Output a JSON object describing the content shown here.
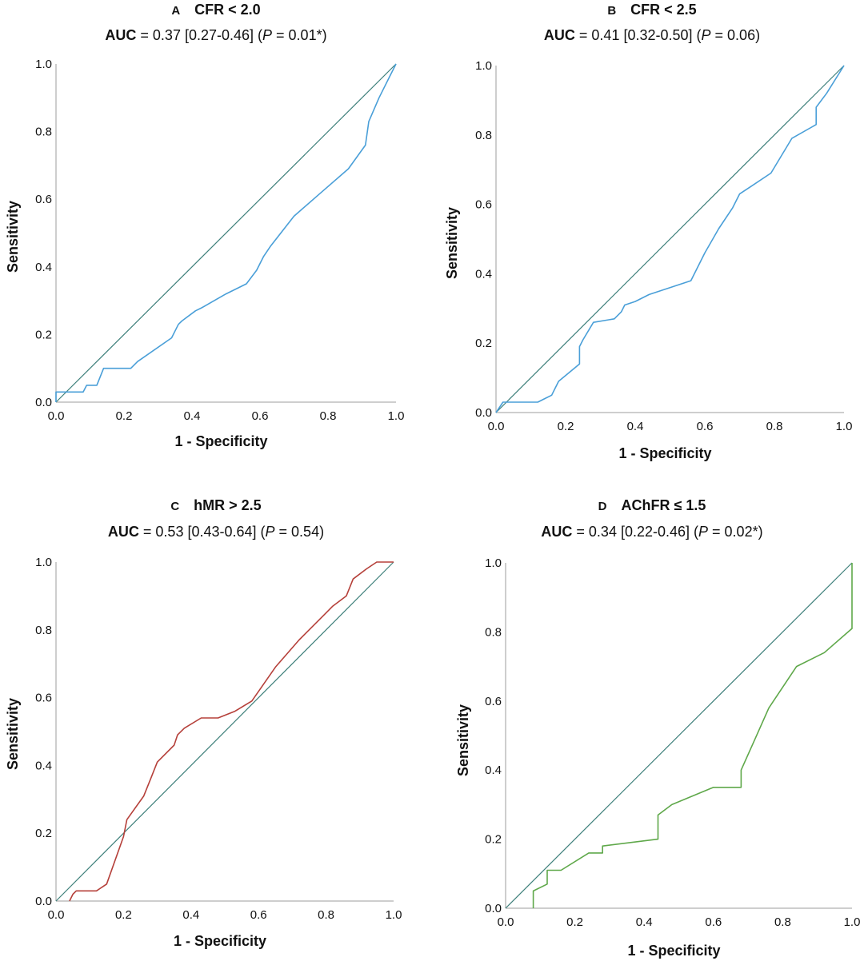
{
  "chart_data": [
    {
      "type": "line",
      "letter": "A",
      "title": "CFR < 2.0",
      "subtitle": {
        "prefix": "AUC",
        "mid": " = 0.37 [0.27-0.46] (",
        "p": "P",
        "tail": " = 0.01*)"
      },
      "xlabel": "1 - Specificity",
      "ylabel": "Sensitivity",
      "xlim": [
        0,
        1
      ],
      "ylim": [
        0,
        1
      ],
      "xticks": [
        "0.0",
        "0.2",
        "0.4",
        "0.6",
        "0.8",
        "1.0"
      ],
      "yticks": [
        "0.0",
        "0.2",
        "0.4",
        "0.6",
        "0.8",
        "1.0"
      ],
      "grid": false,
      "reference_line": [
        [
          0,
          0
        ],
        [
          1,
          1
        ]
      ],
      "series": [
        {
          "color": "#4a9fd8",
          "x": [
            0,
            0,
            0.08,
            0.09,
            0.12,
            0.14,
            0.22,
            0.24,
            0.34,
            0.36,
            0.37,
            0.41,
            0.43,
            0.5,
            0.56,
            0.59,
            0.61,
            0.63,
            0.7,
            0.78,
            0.86,
            0.91,
            0.92,
            0.95,
            0.98,
            1.0
          ],
          "y": [
            0,
            0.03,
            0.03,
            0.05,
            0.05,
            0.1,
            0.1,
            0.12,
            0.19,
            0.23,
            0.24,
            0.27,
            0.28,
            0.32,
            0.35,
            0.39,
            0.43,
            0.46,
            0.55,
            0.62,
            0.69,
            0.76,
            0.83,
            0.9,
            0.96,
            1.0
          ]
        }
      ]
    },
    {
      "type": "line",
      "letter": "B",
      "title": "CFR < 2.5",
      "subtitle": {
        "prefix": "AUC",
        "mid": " = 0.41 [0.32-0.50] (",
        "p": "P",
        "tail": " = 0.06)"
      },
      "xlabel": "1 - Specificity",
      "ylabel": "Sensitivity",
      "xlim": [
        0,
        1
      ],
      "ylim": [
        0,
        1
      ],
      "xticks": [
        "0.0",
        "0.2",
        "0.4",
        "0.6",
        "0.8",
        "1.0"
      ],
      "yticks": [
        "0.0",
        "0.2",
        "0.4",
        "0.6",
        "0.8",
        "1.0"
      ],
      "grid": false,
      "reference_line": [
        [
          0,
          0
        ],
        [
          1,
          1
        ]
      ],
      "series": [
        {
          "color": "#4a9fd8",
          "x": [
            0,
            0.02,
            0.12,
            0.14,
            0.16,
            0.17,
            0.18,
            0.24,
            0.24,
            0.25,
            0.28,
            0.34,
            0.36,
            0.37,
            0.4,
            0.44,
            0.56,
            0.6,
            0.64,
            0.68,
            0.7,
            0.73,
            0.79,
            0.85,
            0.92,
            0.92,
            0.95,
            1.0
          ],
          "y": [
            0,
            0.03,
            0.03,
            0.04,
            0.05,
            0.07,
            0.09,
            0.14,
            0.19,
            0.21,
            0.26,
            0.27,
            0.29,
            0.31,
            0.32,
            0.34,
            0.38,
            0.46,
            0.53,
            0.59,
            0.63,
            0.65,
            0.69,
            0.79,
            0.83,
            0.88,
            0.92,
            1.0
          ]
        }
      ]
    },
    {
      "type": "line",
      "letter": "C",
      "title": "hMR > 2.5",
      "subtitle": {
        "prefix": "AUC",
        "mid": " = 0.53 [0.43-0.64] (",
        "p": "P",
        "tail": " = 0.54)"
      },
      "xlabel": "1 - Specificity",
      "ylabel": "Sensitivity",
      "xlim": [
        0,
        1
      ],
      "ylim": [
        0,
        1
      ],
      "xticks": [
        "0.0",
        "0.2",
        "0.4",
        "0.6",
        "0.8",
        "1.0"
      ],
      "yticks": [
        "0.0",
        "0.2",
        "0.4",
        "0.6",
        "0.8",
        "1.0"
      ],
      "grid": false,
      "reference_line": [
        [
          0,
          0
        ],
        [
          1,
          1
        ]
      ],
      "series": [
        {
          "color": "#b5403a",
          "x": [
            0.04,
            0.05,
            0.06,
            0.12,
            0.15,
            0.2,
            0.21,
            0.26,
            0.28,
            0.3,
            0.35,
            0.36,
            0.38,
            0.43,
            0.48,
            0.53,
            0.58,
            0.65,
            0.72,
            0.79,
            0.82,
            0.86,
            0.88,
            0.92,
            0.95,
            1.0
          ],
          "y": [
            0,
            0.02,
            0.03,
            0.03,
            0.05,
            0.19,
            0.24,
            0.31,
            0.36,
            0.41,
            0.46,
            0.49,
            0.51,
            0.54,
            0.54,
            0.56,
            0.59,
            0.69,
            0.77,
            0.84,
            0.87,
            0.9,
            0.95,
            0.98,
            1.0,
            1.0
          ]
        }
      ]
    },
    {
      "type": "line",
      "letter": "D",
      "title": "AChFR ≤ 1.5",
      "subtitle": {
        "prefix": "AUC",
        "mid": " = 0.34 [0.22-0.46] (",
        "p": "P",
        "tail": " = 0.02*)"
      },
      "xlabel": "1 - Specificity",
      "ylabel": "Sensitivity",
      "xlim": [
        0,
        1
      ],
      "ylim": [
        0,
        1
      ],
      "xticks": [
        "0.0",
        "0.2",
        "0.4",
        "0.6",
        "0.8",
        "1.0"
      ],
      "yticks": [
        "0.0",
        "0.2",
        "0.4",
        "0.6",
        "0.8",
        "1.0"
      ],
      "grid": false,
      "reference_line": [
        [
          0,
          0
        ],
        [
          1,
          1
        ]
      ],
      "series": [
        {
          "color": "#5fa84a",
          "x": [
            0.08,
            0.08,
            0.12,
            0.12,
            0.16,
            0.24,
            0.28,
            0.28,
            0.44,
            0.44,
            0.48,
            0.6,
            0.68,
            0.68,
            0.72,
            0.76,
            0.84,
            0.92,
            1.0,
            1.0
          ],
          "y": [
            0,
            0.05,
            0.07,
            0.11,
            0.11,
            0.16,
            0.16,
            0.18,
            0.2,
            0.27,
            0.3,
            0.35,
            0.35,
            0.4,
            0.49,
            0.58,
            0.7,
            0.74,
            0.81,
            1.0
          ]
        }
      ]
    }
  ]
}
